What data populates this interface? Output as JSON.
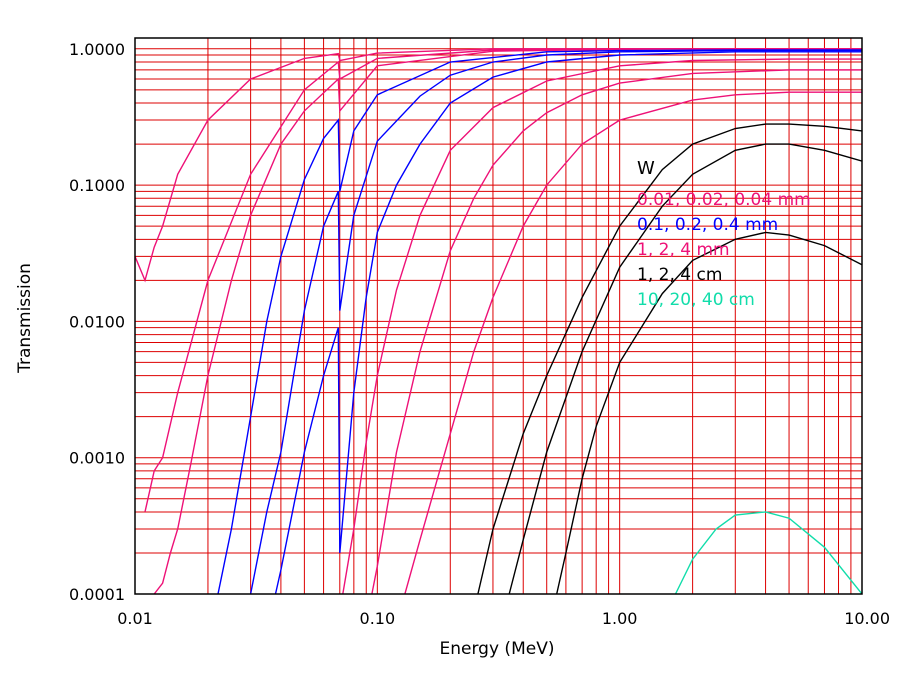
{
  "chart_data": {
    "type": "line",
    "title": "",
    "material_label": "W",
    "xlabel": "Energy (MeV)",
    "ylabel": "Transmission",
    "x_scale": "log",
    "y_scale": "log",
    "xlim": [
      0.01,
      10.0
    ],
    "ylim": [
      0.0001,
      1.2
    ],
    "x_ticks": [
      {
        "value": 0.01,
        "label": "0.01"
      },
      {
        "value": 0.1,
        "label": "0.10"
      },
      {
        "value": 1.0,
        "label": "1.00"
      },
      {
        "value": 10.0,
        "label": "10.00"
      }
    ],
    "y_ticks": [
      {
        "value": 1.0,
        "label": "1.0000"
      },
      {
        "value": 0.1,
        "label": "0.1000"
      },
      {
        "value": 0.01,
        "label": "0.0100"
      },
      {
        "value": 0.001,
        "label": "0.0010"
      },
      {
        "value": 0.0001,
        "label": "0.0001"
      }
    ],
    "grid": true,
    "grid_color": "#dd0000",
    "legend_placement": "right, inside plot",
    "legend": [
      {
        "label": "0.01, 0.02, 0.04 mm",
        "color": "#ee1177"
      },
      {
        "label": "0.1, 0.2, 0.4 mm",
        "color": "#0000ff"
      },
      {
        "label": "1, 2, 4 mm",
        "color": "#ee1177"
      },
      {
        "label": "1, 2, 4 cm",
        "color": "#000000"
      },
      {
        "label": "10, 20, 40 cm",
        "color": "#11ddaa"
      }
    ],
    "series": [
      {
        "name": "0.01 mm",
        "color": "#ee1177",
        "x": [
          0.01,
          0.011,
          0.012,
          0.013,
          0.015,
          0.02,
          0.03,
          0.05,
          0.069,
          0.07,
          0.1,
          0.3,
          1,
          3,
          10
        ],
        "y": [
          0.03,
          0.02,
          0.035,
          0.05,
          0.12,
          0.3,
          0.6,
          0.85,
          0.92,
          0.82,
          0.93,
          1.0,
          1.0,
          1.0,
          1.0
        ]
      },
      {
        "name": "0.02 mm",
        "color": "#ee1177",
        "x": [
          0.011,
          0.012,
          0.013,
          0.015,
          0.02,
          0.03,
          0.05,
          0.069,
          0.07,
          0.1,
          0.3,
          1,
          3,
          10
        ],
        "y": [
          0.0004,
          0.0008,
          0.001,
          0.003,
          0.02,
          0.12,
          0.5,
          0.8,
          0.6,
          0.85,
          0.98,
          1.0,
          1.0,
          1.0
        ]
      },
      {
        "name": "0.04 mm",
        "color": "#ee1177",
        "x": [
          0.012,
          0.013,
          0.014,
          0.015,
          0.017,
          0.02,
          0.025,
          0.03,
          0.04,
          0.05,
          0.069,
          0.07,
          0.1,
          0.3,
          1,
          3,
          10
        ],
        "y": [
          0.0001,
          0.00012,
          0.0002,
          0.0003,
          0.0009,
          0.004,
          0.02,
          0.06,
          0.2,
          0.35,
          0.6,
          0.35,
          0.75,
          0.96,
          0.99,
          1.0,
          1.0
        ]
      },
      {
        "name": "0.1 mm",
        "color": "#0000ff",
        "x": [
          0.022,
          0.025,
          0.03,
          0.035,
          0.04,
          0.05,
          0.06,
          0.069,
          0.07,
          0.08,
          0.1,
          0.2,
          0.5,
          1,
          3,
          10
        ],
        "y": [
          0.0001,
          0.0003,
          0.002,
          0.01,
          0.03,
          0.11,
          0.22,
          0.3,
          0.09,
          0.25,
          0.46,
          0.8,
          0.95,
          0.97,
          0.98,
          0.98
        ]
      },
      {
        "name": "0.2 mm",
        "color": "#0000ff",
        "x": [
          0.03,
          0.035,
          0.04,
          0.05,
          0.06,
          0.069,
          0.07,
          0.08,
          0.1,
          0.15,
          0.2,
          0.3,
          0.5,
          1,
          3,
          10
        ],
        "y": [
          0.0001,
          0.0004,
          0.0011,
          0.012,
          0.05,
          0.09,
          0.012,
          0.06,
          0.21,
          0.45,
          0.64,
          0.8,
          0.9,
          0.95,
          0.97,
          0.97
        ]
      },
      {
        "name": "0.4 mm",
        "color": "#0000ff",
        "x": [
          0.038,
          0.04,
          0.05,
          0.06,
          0.069,
          0.07,
          0.08,
          0.09,
          0.1,
          0.12,
          0.15,
          0.2,
          0.3,
          0.5,
          1,
          3,
          10
        ],
        "y": [
          0.0001,
          0.00015,
          0.0011,
          0.004,
          0.009,
          0.0002,
          0.003,
          0.015,
          0.045,
          0.1,
          0.2,
          0.4,
          0.62,
          0.8,
          0.9,
          0.95,
          0.95
        ]
      },
      {
        "name": "1 mm",
        "color": "#ee1177",
        "x": [
          0.072,
          0.08,
          0.09,
          0.1,
          0.12,
          0.15,
          0.2,
          0.3,
          0.5,
          1,
          2,
          5,
          10
        ],
        "y": [
          0.0001,
          0.0003,
          0.0013,
          0.004,
          0.017,
          0.06,
          0.18,
          0.37,
          0.58,
          0.75,
          0.82,
          0.84,
          0.84
        ]
      },
      {
        "name": "2 mm",
        "color": "#ee1177",
        "x": [
          0.095,
          0.1,
          0.12,
          0.15,
          0.2,
          0.25,
          0.3,
          0.4,
          0.5,
          0.7,
          1,
          2,
          5,
          10
        ],
        "y": [
          0.0001,
          0.00016,
          0.0011,
          0.006,
          0.033,
          0.08,
          0.14,
          0.25,
          0.34,
          0.46,
          0.56,
          0.66,
          0.7,
          0.7
        ]
      },
      {
        "name": "4 mm",
        "color": "#ee1177",
        "x": [
          0.13,
          0.15,
          0.2,
          0.25,
          0.3,
          0.4,
          0.5,
          0.7,
          1,
          2,
          3,
          5,
          10
        ],
        "y": [
          0.0001,
          0.00025,
          0.0015,
          0.006,
          0.015,
          0.05,
          0.1,
          0.2,
          0.3,
          0.42,
          0.46,
          0.48,
          0.48
        ]
      },
      {
        "name": "1 cm",
        "color": "#000000",
        "x": [
          0.26,
          0.3,
          0.4,
          0.5,
          0.7,
          1,
          1.5,
          2,
          3,
          4,
          5,
          7,
          10
        ],
        "y": [
          0.0001,
          0.0003,
          0.0015,
          0.004,
          0.015,
          0.05,
          0.13,
          0.2,
          0.26,
          0.28,
          0.28,
          0.27,
          0.25
        ]
      },
      {
        "name": "2 cm",
        "color": "#000000",
        "x": [
          0.35,
          0.4,
          0.5,
          0.7,
          1,
          1.5,
          2,
          3,
          4,
          5,
          7,
          10
        ],
        "y": [
          0.0001,
          0.00025,
          0.0011,
          0.006,
          0.025,
          0.07,
          0.12,
          0.18,
          0.2,
          0.2,
          0.18,
          0.15
        ]
      },
      {
        "name": "4 cm",
        "color": "#000000",
        "x": [
          0.55,
          0.6,
          0.7,
          0.8,
          1,
          1.5,
          2,
          3,
          4,
          5,
          7,
          10
        ],
        "y": [
          0.0001,
          0.0002,
          0.0007,
          0.0017,
          0.005,
          0.016,
          0.028,
          0.04,
          0.045,
          0.043,
          0.036,
          0.026
        ]
      },
      {
        "name": "10 cm",
        "color": "#11ddaa",
        "x": [
          1.7,
          2,
          2.5,
          3,
          4,
          5,
          7,
          10
        ],
        "y": [
          0.0001,
          0.00018,
          0.0003,
          0.00038,
          0.0004,
          0.00036,
          0.00022,
          0.0001
        ]
      }
    ]
  }
}
